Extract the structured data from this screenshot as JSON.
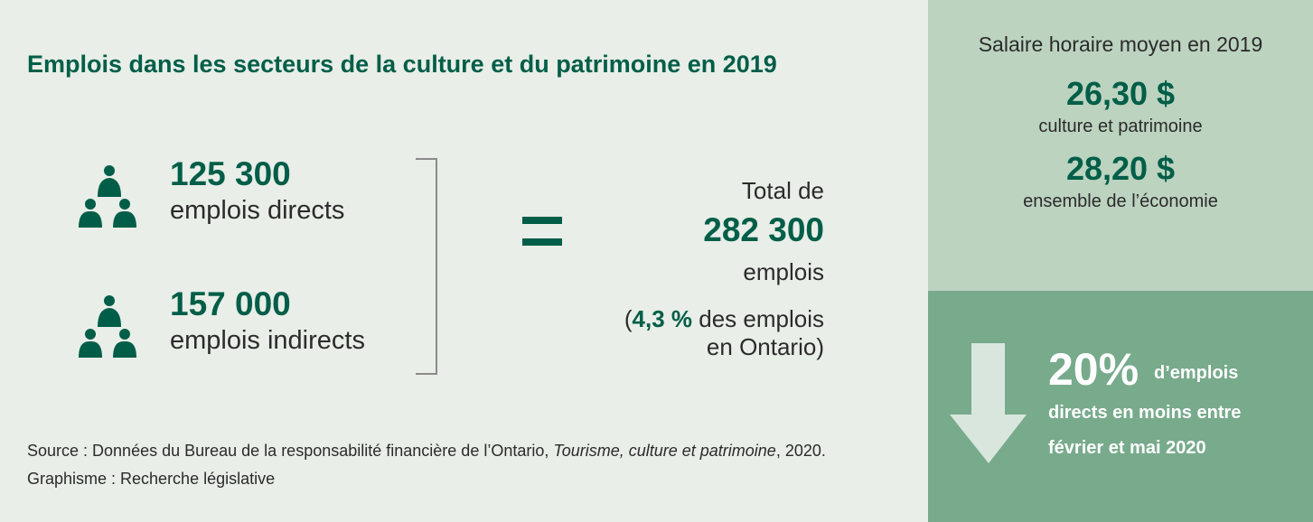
{
  "title": "Emplois dans les secteurs de la culture et du patrimoine en 2019",
  "direct": {
    "value": "125 300",
    "label": "emplois directs",
    "icon": "people-group-icon"
  },
  "indirect": {
    "value": "157 000",
    "label": "emplois indirects",
    "icon": "people-group-icon"
  },
  "total": {
    "prefix": "Total de",
    "value": "282 300",
    "unit": "emplois",
    "open_paren": "(",
    "share": "4,3 %",
    "share_rest": " des emplois",
    "share_line2": "en Ontario)"
  },
  "source": {
    "part1": "Source : Données du Bureau de la responsabilité financière de l’Ontario, ",
    "italic1": "Tourisme, culture et patrimoine",
    "part2": ", 2020.  Graphisme : Recherche législative"
  },
  "wages": {
    "title": "Salaire horaire moyen en 2019",
    "culture_value": "26,30 $",
    "culture_label": "culture et patrimoine",
    "economy_value": "28,20 $",
    "economy_label": "ensemble de l’économie"
  },
  "decline": {
    "percent": "20%",
    "text1": "d’emplois",
    "text2": "directs en moins entre",
    "text3": "février et mai 2020",
    "icon": "arrow-down-icon"
  },
  "colors": {
    "dark_green": "#005e48",
    "background": "#e9eee8",
    "panel_light": "#bcd3bf",
    "panel_mid": "#78aa8c",
    "arrow": "#d9e6de"
  }
}
